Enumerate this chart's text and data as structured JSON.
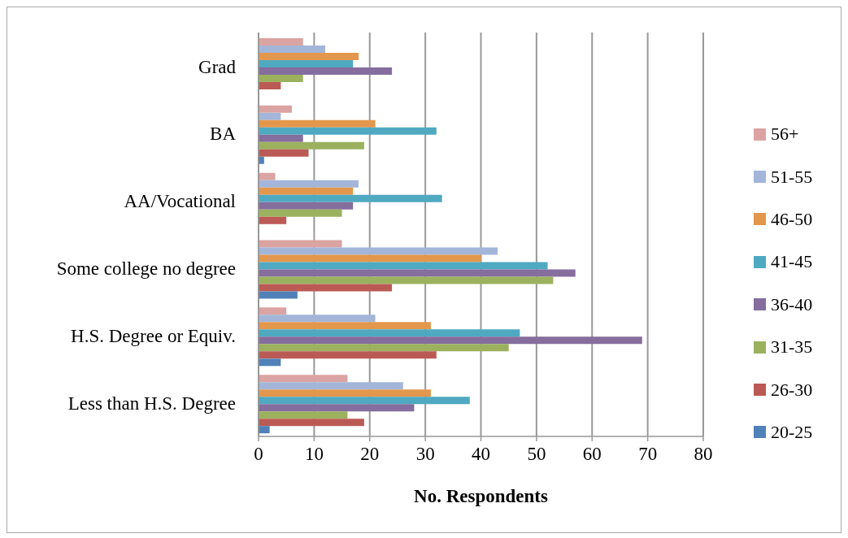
{
  "chart_data": {
    "type": "bar",
    "orientation": "horizontal",
    "categories": [
      "Grad",
      "BA",
      "AA/Vocational",
      "Some college no degree",
      "H.S. Degree or Equiv.",
      "Less than H.S. Degree"
    ],
    "series": [
      {
        "name": "56+",
        "color": "#dba3a2",
        "values": [
          8,
          6,
          3,
          15,
          5,
          16
        ]
      },
      {
        "name": "51-55",
        "color": "#a3b6d9",
        "values": [
          12,
          4,
          18,
          43,
          21,
          26
        ]
      },
      {
        "name": "46-50",
        "color": "#e3974d",
        "values": [
          18,
          21,
          17,
          40,
          31,
          31
        ]
      },
      {
        "name": "41-45",
        "color": "#4fa9c0",
        "values": [
          17,
          32,
          33,
          52,
          47,
          38
        ]
      },
      {
        "name": "36-40",
        "color": "#856d9e",
        "values": [
          24,
          8,
          17,
          57,
          69,
          28
        ]
      },
      {
        "name": "31-35",
        "color": "#9bb15e",
        "values": [
          8,
          19,
          15,
          53,
          45,
          16
        ]
      },
      {
        "name": "26-30",
        "color": "#bb5a55",
        "values": [
          4,
          9,
          5,
          24,
          32,
          19
        ]
      },
      {
        "name": "20-25",
        "color": "#5081b8",
        "values": [
          0,
          1,
          0,
          7,
          4,
          2
        ]
      }
    ],
    "xlim": [
      0,
      80
    ],
    "xticks": [
      0,
      10,
      20,
      30,
      40,
      50,
      60,
      70,
      80
    ],
    "xlabel": "No. Respondents",
    "grid": "x",
    "legend": "right"
  }
}
